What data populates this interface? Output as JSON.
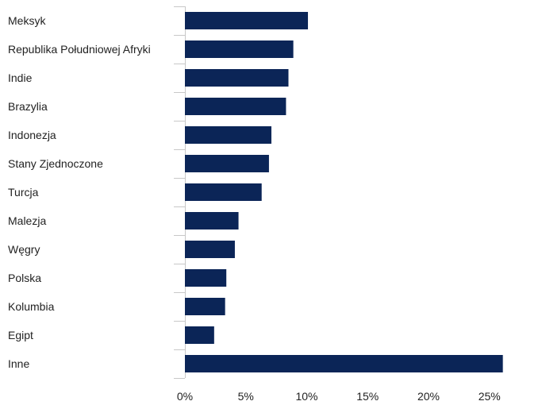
{
  "chart_data": {
    "type": "bar",
    "orientation": "horizontal",
    "categories": [
      "Meksyk",
      "Republika Południowej Afryki",
      "Indie",
      "Brazylia",
      "Indonezja",
      "Stany Zjednoczone",
      "Turcja",
      "Malezja",
      "Węgry",
      "Polska",
      "Kolumbia",
      "Egipt",
      "Inne"
    ],
    "values": [
      10.1,
      8.9,
      8.5,
      8.3,
      7.1,
      6.9,
      6.3,
      4.4,
      4.1,
      3.4,
      3.3,
      2.4,
      26.1
    ],
    "xlim": [
      0,
      29
    ],
    "xticks": [
      0,
      5,
      10,
      15,
      20,
      25
    ],
    "xtick_labels": [
      "0%",
      "5%",
      "10%",
      "15%",
      "20%",
      "25%"
    ],
    "title": "",
    "xlabel": "",
    "ylabel": "",
    "legend": "none",
    "grid": false,
    "bar_color": "#0b2557",
    "axis_color": "#c8c8c8",
    "text_color": "#222222"
  }
}
